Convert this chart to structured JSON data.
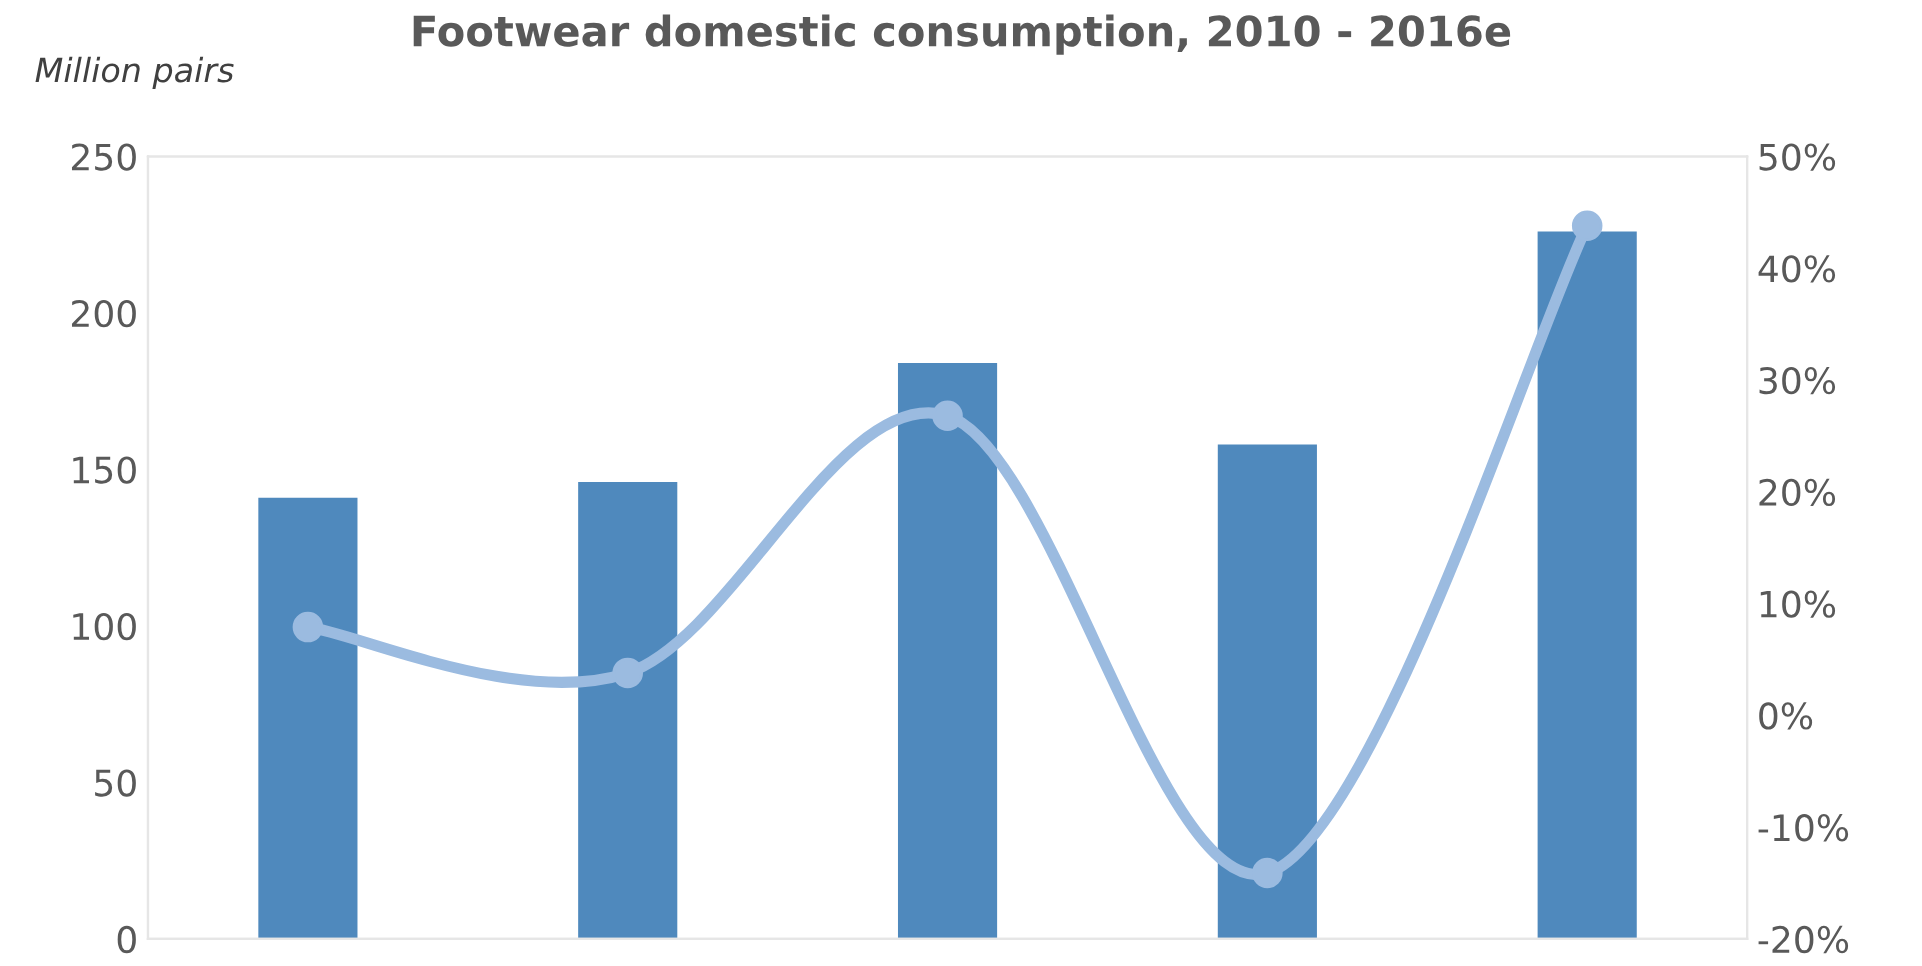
{
  "chart_data": {
    "type": "bar",
    "title": "Footwear domestic consumption, 2010 - 2016e",
    "ylabel": "Million pairs",
    "categories": [
      null,
      null,
      null,
      null,
      null
    ],
    "series": [
      {
        "color": "#4f89bd",
        "values": [
          141,
          146,
          184,
          158,
          226
        ]
      },
      {
        "type": "line",
        "axis": "y2",
        "color": "#9bbbe0",
        "marker": "circle",
        "values": [
          7.9,
          3.8,
          26.8,
          -14.1,
          43.8
        ]
      }
    ],
    "ylim": [
      0,
      250
    ],
    "yticks": [
      0,
      50,
      100,
      150,
      200,
      250
    ],
    "y2lim": [
      -20,
      50
    ],
    "y2ticks": [
      {
        "value": -20,
        "label": "-20%"
      },
      {
        "value": -10,
        "label": "-10%"
      },
      {
        "value": 0,
        "label": "0%"
      },
      {
        "value": 10,
        "label": "10%"
      },
      {
        "value": 20,
        "label": "20%"
      },
      {
        "value": 30,
        "label": "30%"
      },
      {
        "value": 40,
        "label": "40%"
      },
      {
        "value": 50,
        "label": "50%"
      }
    ],
    "grid": false,
    "legend": false
  }
}
